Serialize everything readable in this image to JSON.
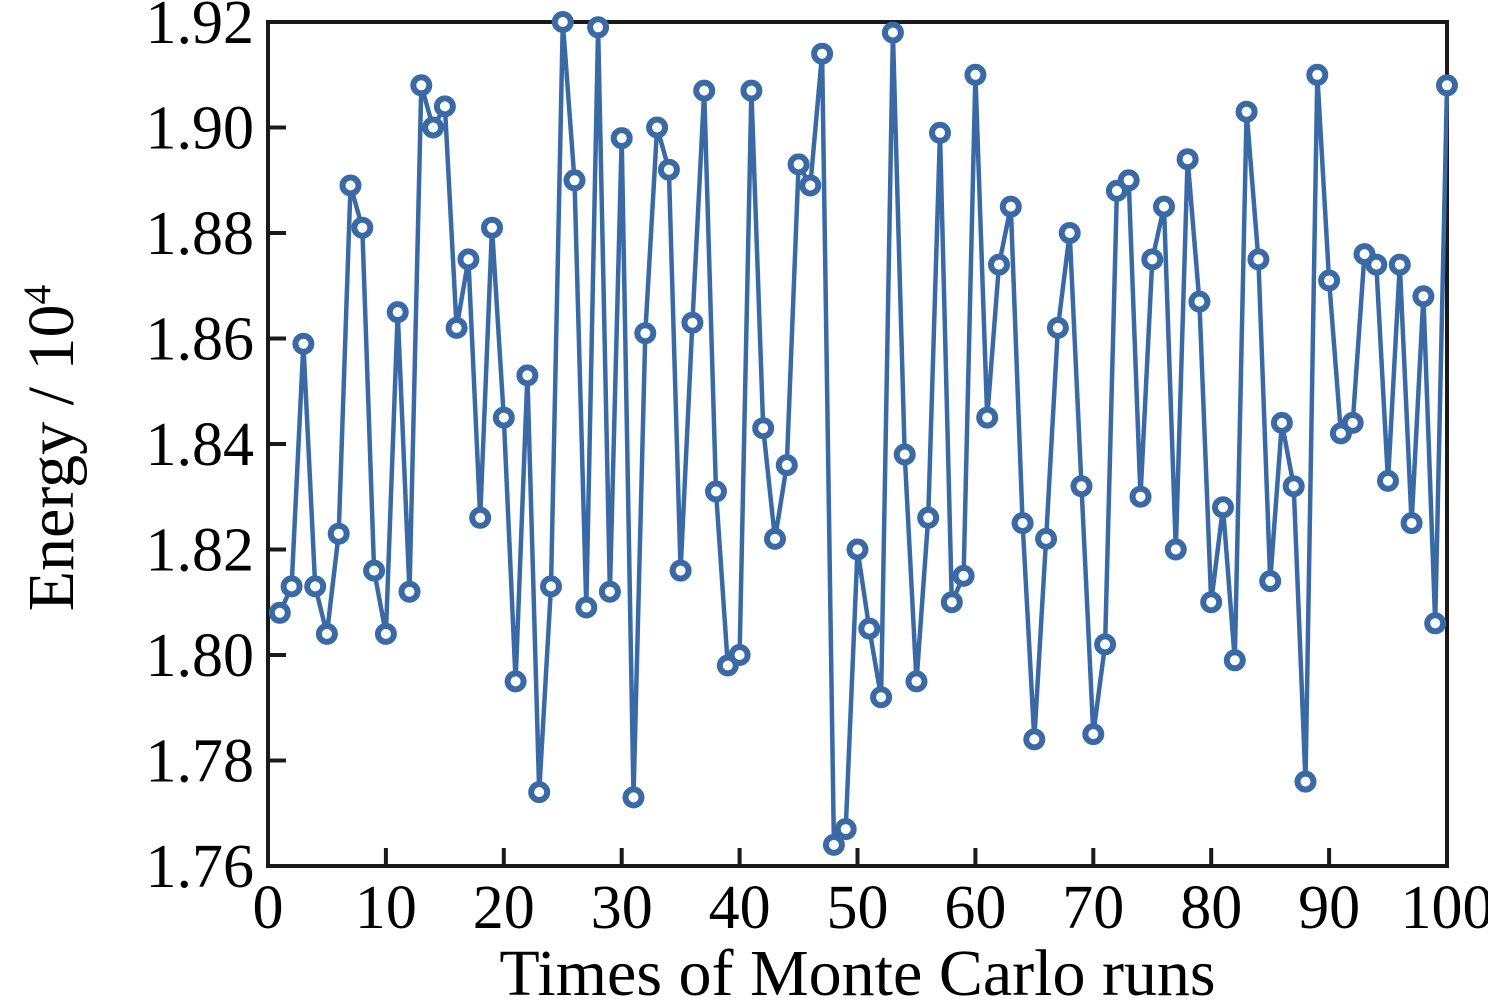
{
  "figure": {
    "background_color": "#ffffff"
  },
  "chart_data": {
    "type": "line",
    "title": "",
    "xlabel": "Times of Monte Carlo runs",
    "ylabel_base": "Energy / 10",
    "ylabel_exp": "4",
    "xlim": [
      0,
      100
    ],
    "ylim": [
      1.76,
      1.92
    ],
    "xticks": [
      0,
      10,
      20,
      30,
      40,
      50,
      60,
      70,
      80,
      90,
      100
    ],
    "xtick_labels": [
      "0",
      "10",
      "20",
      "30",
      "40",
      "50",
      "60",
      "70",
      "80",
      "90",
      "100"
    ],
    "yticks": [
      1.76,
      1.78,
      1.8,
      1.82,
      1.84,
      1.86,
      1.88,
      1.9,
      1.92
    ],
    "ytick_labels": [
      "1.76",
      "1.78",
      "1.80",
      "1.82",
      "1.84",
      "1.86",
      "1.88",
      "1.90",
      "1.92"
    ],
    "grid": false,
    "legend": null,
    "marker_style": "open-circle",
    "line_color": "#3A6AA6",
    "axis_color": "#1a1a1a",
    "x_start": 1,
    "x_step": 1,
    "values": [
      1.808,
      1.813,
      1.859,
      1.813,
      1.804,
      1.823,
      1.889,
      1.881,
      1.816,
      1.804,
      1.865,
      1.812,
      1.908,
      1.9,
      1.904,
      1.862,
      1.875,
      1.826,
      1.881,
      1.845,
      1.795,
      1.853,
      1.774,
      1.813,
      1.92,
      1.89,
      1.809,
      1.919,
      1.812,
      1.898,
      1.773,
      1.861,
      1.9,
      1.892,
      1.816,
      1.863,
      1.907,
      1.831,
      1.798,
      1.8,
      1.907,
      1.843,
      1.822,
      1.836,
      1.893,
      1.889,
      1.914,
      1.764,
      1.767,
      1.82,
      1.805,
      1.792,
      1.918,
      1.838,
      1.795,
      1.826,
      1.899,
      1.81,
      1.815,
      1.91,
      1.845,
      1.874,
      1.885,
      1.825,
      1.784,
      1.822,
      1.862,
      1.88,
      1.832,
      1.785,
      1.802,
      1.888,
      1.89,
      1.83,
      1.875,
      1.885,
      1.82,
      1.894,
      1.867,
      1.81,
      1.828,
      1.799,
      1.903,
      1.875,
      1.814,
      1.844,
      1.832,
      1.776,
      1.91,
      1.871,
      1.842,
      1.844,
      1.876,
      1.874,
      1.833,
      1.874,
      1.825,
      1.868,
      1.806,
      1.908
    ]
  }
}
